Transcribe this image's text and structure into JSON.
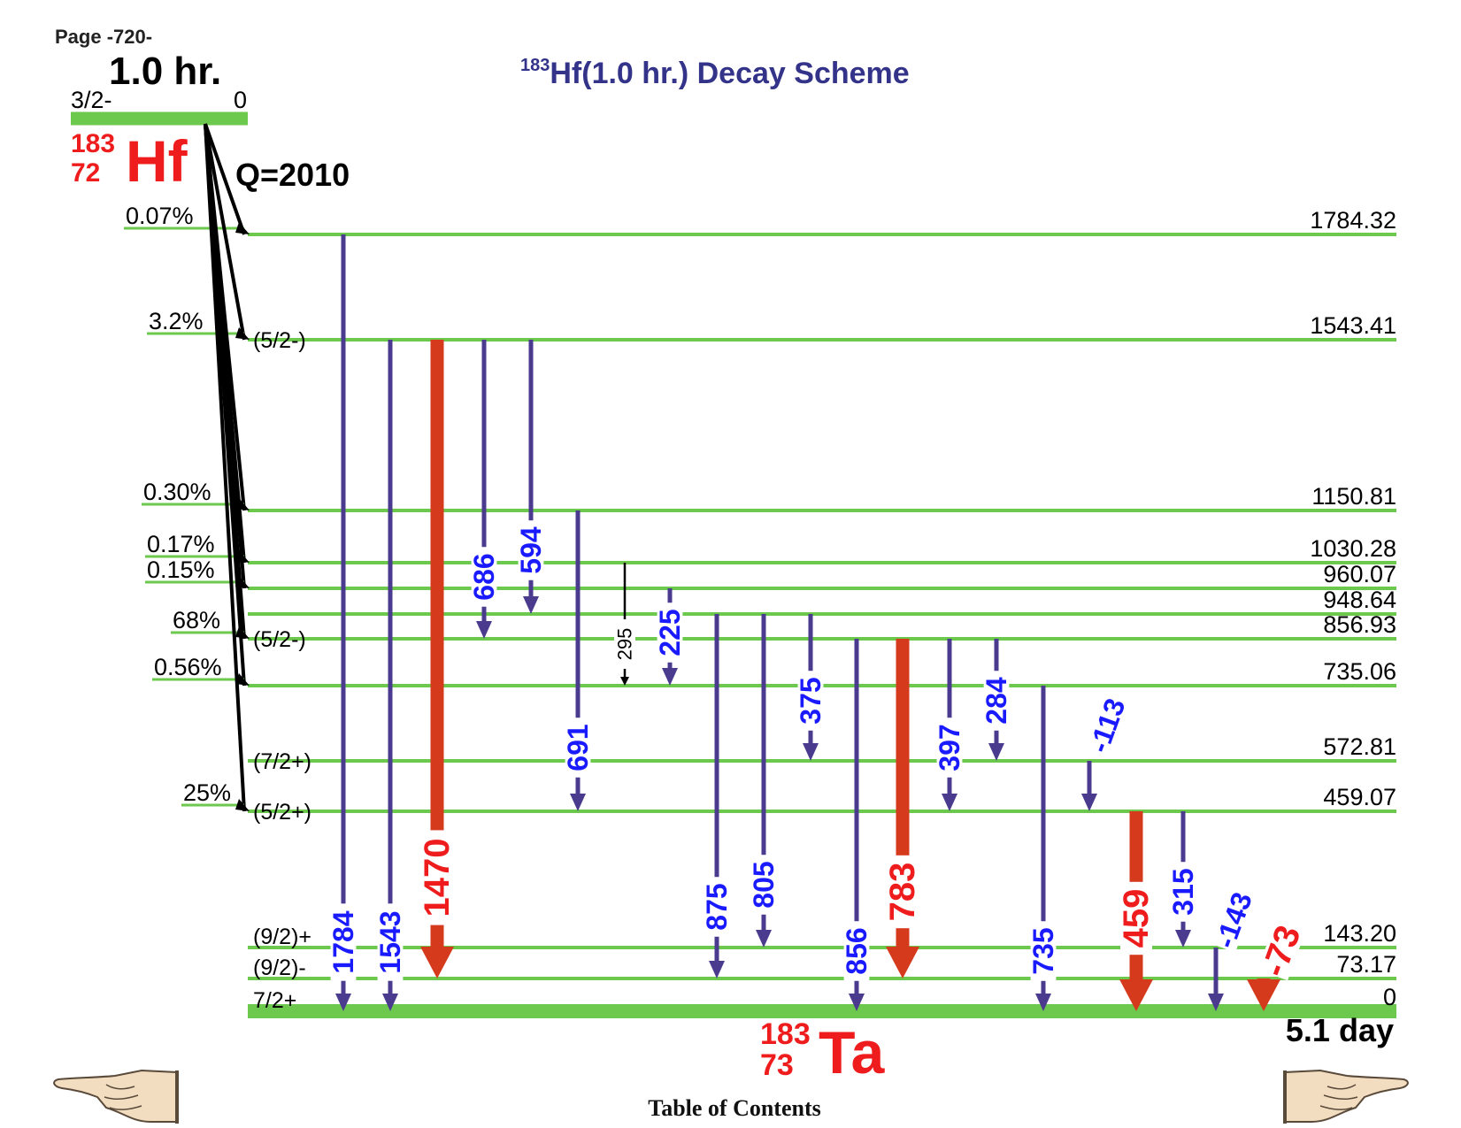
{
  "page_label": "Page -720-",
  "title": {
    "mass": "183",
    "text": "Hf(1.0 hr.) Decay Scheme"
  },
  "parent": {
    "half_life": "1.0 hr.",
    "spin": "3/2-",
    "energy": "0",
    "mass": "183",
    "z": "72",
    "symbol": "Hf",
    "q_value": "Q=2010"
  },
  "daughter": {
    "mass": "183",
    "z": "73",
    "symbol": "Ta",
    "half_life": "5.1 day"
  },
  "levels": [
    {
      "energy": "1784.32",
      "spin": "",
      "beta": "0.07%"
    },
    {
      "energy": "1543.41",
      "spin": "(5/2-)",
      "beta": "3.2%"
    },
    {
      "energy": "1150.81",
      "spin": "",
      "beta": "0.30%"
    },
    {
      "energy": "1030.28",
      "spin": "",
      "beta": "0.17%"
    },
    {
      "energy": "960.07",
      "spin": "",
      "beta": "0.15%"
    },
    {
      "energy": "948.64",
      "spin": "",
      "beta": ""
    },
    {
      "energy": "856.93",
      "spin": "(5/2-)",
      "beta": "68%"
    },
    {
      "energy": "735.06",
      "spin": "",
      "beta": "0.56%"
    },
    {
      "energy": "572.81",
      "spin": "(7/2+)",
      "beta": ""
    },
    {
      "energy": "459.07",
      "spin": "(5/2+)",
      "beta": "25%"
    },
    {
      "energy": "143.20",
      "spin": "(9/2)+",
      "beta": ""
    },
    {
      "energy": "73.17",
      "spin": "(9/2)-",
      "beta": ""
    },
    {
      "energy": "0",
      "spin": "7/2+",
      "beta": ""
    }
  ],
  "gammas": [
    {
      "label": "1784",
      "from": "1784.32",
      "to": "0",
      "intensity": "medium"
    },
    {
      "label": "1543",
      "from": "1543.41",
      "to": "0",
      "intensity": "medium"
    },
    {
      "label": "1470",
      "from": "1543.41",
      "to": "73.17",
      "intensity": "strong"
    },
    {
      "label": "686",
      "from": "1543.41",
      "to": "856.93",
      "intensity": "medium"
    },
    {
      "label": "594",
      "from": "1543.41",
      "to": "948.64",
      "intensity": "medium"
    },
    {
      "label": "691",
      "from": "1150.81",
      "to": "459.07",
      "intensity": "medium"
    },
    {
      "label": "295",
      "from": "1030.28",
      "to": "735.06",
      "intensity": "weak"
    },
    {
      "label": "225",
      "from": "960.07",
      "to": "735.06",
      "intensity": "medium"
    },
    {
      "label": "875",
      "from": "948.64",
      "to": "73.17",
      "intensity": "medium"
    },
    {
      "label": "805",
      "from": "948.64",
      "to": "143.20",
      "intensity": "medium"
    },
    {
      "label": "375",
      "from": "948.64",
      "to": "572.81",
      "intensity": "medium"
    },
    {
      "label": "856",
      "from": "856.93",
      "to": "0",
      "intensity": "medium"
    },
    {
      "label": "783",
      "from": "856.93",
      "to": "73.17",
      "intensity": "strong"
    },
    {
      "label": "397",
      "from": "856.93",
      "to": "459.07",
      "intensity": "medium"
    },
    {
      "label": "284",
      "from": "856.93",
      "to": "572.81",
      "intensity": "medium"
    },
    {
      "label": "735",
      "from": "735.06",
      "to": "0",
      "intensity": "medium"
    },
    {
      "label": "113",
      "from": "572.81",
      "to": "459.07",
      "intensity": "medium"
    },
    {
      "label": "459",
      "from": "459.07",
      "to": "0",
      "intensity": "strong"
    },
    {
      "label": "315",
      "from": "459.07",
      "to": "143.20",
      "intensity": "medium"
    },
    {
      "label": "143",
      "from": "143.20",
      "to": "0",
      "intensity": "medium"
    },
    {
      "label": "73",
      "from": "73.17",
      "to": "0",
      "intensity": "strong"
    }
  ],
  "colors": {
    "level": "#6cc94e",
    "gamma_medium": "#4b3b8f",
    "gamma_strong": "#d53a1c",
    "gamma_weak": "#000000",
    "label_medium": "#1a1aff",
    "label_strong": "#ee1c1c",
    "title": "#33338a",
    "nuclide": "#ee1c1c"
  },
  "navigation": {
    "toc_label": "Table of Contents",
    "prev_icon": "pointing-hand-left-icon",
    "next_icon": "pointing-hand-right-icon"
  }
}
